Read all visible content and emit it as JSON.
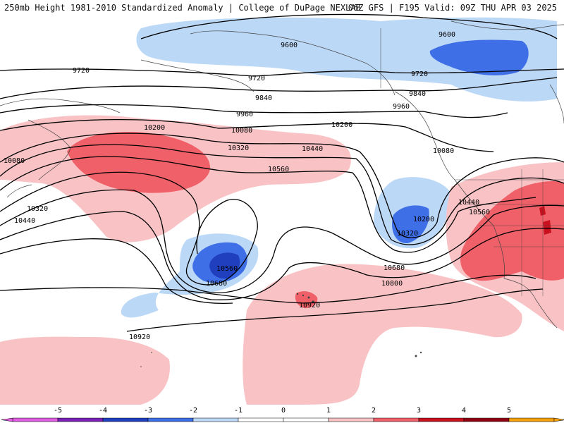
{
  "header": {
    "left": "250mb Height 1981-2010 Standardized Anomaly | College of DuPage NEXLAB",
    "right": "06Z GFS | F195 Valid: 09Z THU APR 03 2025"
  },
  "colors": {
    "neg5": "#e05ce0",
    "neg4": "#7a1fb5",
    "neg3": "#1f3fbf",
    "neg2": "#3f6fe6",
    "neg1": "#bcd8f7",
    "zero": "#ffffff",
    "pos1": "#f9c3c6",
    "pos2": "#f06068",
    "pos3": "#c8101e",
    "pos4": "#8f0010",
    "pos5": "#f4a00c"
  },
  "contour_labels": [
    "9600",
    "9600",
    "9720",
    "9720",
    "9720",
    "9840",
    "9840",
    "9960",
    "9960",
    "10080",
    "10080",
    "10080",
    "10200",
    "10200",
    "10200",
    "10320",
    "10320",
    "10320",
    "10440",
    "10440",
    "10440",
    "10560",
    "10560",
    "10560",
    "10680",
    "10680",
    "10800",
    "10920",
    "10920"
  ],
  "legend": {
    "ticks": [
      "-5",
      "-4",
      "-3",
      "-2",
      "-1",
      "0",
      "1",
      "2",
      "3",
      "4",
      "5"
    ]
  }
}
